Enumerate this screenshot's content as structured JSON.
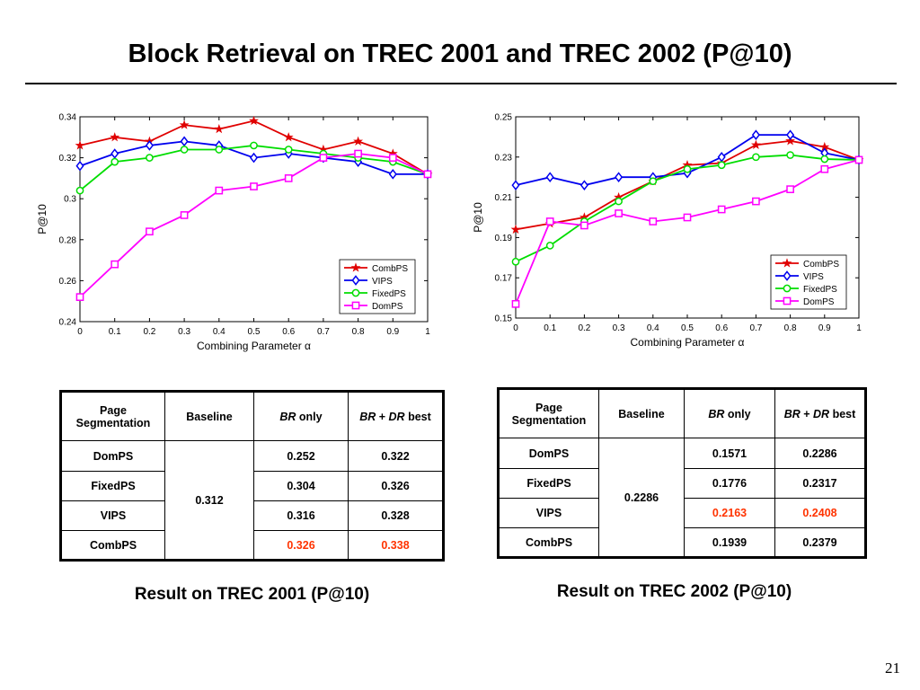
{
  "slide": {
    "title": "Block Retrieval on TREC 2001 and TREC 2002 (P@10)",
    "page_number": "21"
  },
  "chart_data": [
    {
      "type": "line",
      "title": "",
      "xlabel": "Combining Parameter α",
      "ylabel": "P@10",
      "x": [
        0,
        0.1,
        0.2,
        0.3,
        0.4,
        0.5,
        0.6,
        0.7,
        0.8,
        0.9,
        1
      ],
      "xlim": [
        0,
        1
      ],
      "ylim": [
        0.24,
        0.34
      ],
      "xticks": [
        "0",
        "0.1",
        "0.2",
        "0.3",
        "0.4",
        "0.5",
        "0.6",
        "0.7",
        "0.8",
        "0.9",
        "1"
      ],
      "yticks": [
        0.24,
        0.26,
        0.28,
        0.3,
        0.32,
        0.34
      ],
      "ytick_labels": [
        "0.24",
        "0.26",
        "0.28",
        "0.3",
        "0.32",
        "0.34"
      ],
      "grid": false,
      "legend_position": "bottom-right",
      "series": [
        {
          "name": "CombPS",
          "color": "#e00000",
          "marker": "star",
          "values": [
            0.326,
            0.33,
            0.328,
            0.336,
            0.334,
            0.338,
            0.33,
            0.324,
            0.328,
            0.322,
            0.312
          ]
        },
        {
          "name": "VIPS",
          "color": "#0000ee",
          "marker": "diamond",
          "values": [
            0.316,
            0.322,
            0.326,
            0.328,
            0.326,
            0.32,
            0.322,
            0.32,
            0.318,
            0.312,
            0.312
          ]
        },
        {
          "name": "FixedPS",
          "color": "#00dd00",
          "marker": "circle",
          "values": [
            0.304,
            0.318,
            0.32,
            0.324,
            0.324,
            0.326,
            0.324,
            0.322,
            0.32,
            0.318,
            0.312
          ]
        },
        {
          "name": "DomPS",
          "color": "#ff00ff",
          "marker": "square",
          "values": [
            0.252,
            0.268,
            0.284,
            0.292,
            0.304,
            0.306,
            0.31,
            0.32,
            0.322,
            0.32,
            0.312
          ]
        }
      ]
    },
    {
      "type": "line",
      "title": "",
      "xlabel": "Combining Parameter α",
      "ylabel": "P@10",
      "x": [
        0,
        0.1,
        0.2,
        0.3,
        0.4,
        0.5,
        0.6,
        0.7,
        0.8,
        0.9,
        1
      ],
      "xlim": [
        0,
        1
      ],
      "ylim": [
        0.15,
        0.25
      ],
      "xticks": [
        "0",
        "0.1",
        "0.2",
        "0.3",
        "0.4",
        "0.5",
        "0.6",
        "0.7",
        "0.8",
        "0.9",
        "1"
      ],
      "yticks": [
        0.15,
        0.17,
        0.19,
        0.21,
        0.23,
        0.25
      ],
      "ytick_labels": [
        "0.15",
        "0.17",
        "0.19",
        "0.21",
        "0.23",
        "0.25"
      ],
      "grid": false,
      "legend_position": "bottom-right",
      "series": [
        {
          "name": "CombPS",
          "color": "#e00000",
          "marker": "star",
          "values": [
            0.194,
            0.197,
            0.2,
            0.21,
            0.218,
            0.226,
            0.227,
            0.236,
            0.238,
            0.235,
            0.2286
          ]
        },
        {
          "name": "VIPS",
          "color": "#0000ee",
          "marker": "diamond",
          "values": [
            0.216,
            0.22,
            0.216,
            0.22,
            0.22,
            0.222,
            0.23,
            0.241,
            0.241,
            0.232,
            0.2286
          ]
        },
        {
          "name": "FixedPS",
          "color": "#00dd00",
          "marker": "circle",
          "values": [
            0.178,
            0.186,
            0.198,
            0.208,
            0.218,
            0.224,
            0.226,
            0.23,
            0.231,
            0.229,
            0.2286
          ]
        },
        {
          "name": "DomPS",
          "color": "#ff00ff",
          "marker": "square",
          "values": [
            0.157,
            0.198,
            0.196,
            0.202,
            0.198,
            0.2,
            0.204,
            0.208,
            0.214,
            0.224,
            0.2286
          ]
        }
      ]
    }
  ],
  "tables": [
    {
      "headers": {
        "seg": "Page Segmentation",
        "baseline": "Baseline",
        "br_italic": "BR",
        "br_rest": " only",
        "brdr_italic1": "BR",
        "brdr_plus": " + ",
        "brdr_italic2": "DR",
        "brdr_rest": " best"
      },
      "baseline_value": "0.312",
      "rows": [
        {
          "seg": "DomPS",
          "br": "0.252",
          "best": "0.322"
        },
        {
          "seg": "FixedPS",
          "br": "0.304",
          "best": "0.326"
        },
        {
          "seg": "VIPS",
          "br": "0.316",
          "best": "0.328"
        },
        {
          "seg": "CombPS",
          "br": "0.326",
          "best": "0.338"
        }
      ],
      "highlight_color": "#ff3300",
      "caption": "Result on TREC 2001 (P@10)"
    },
    {
      "headers": {
        "seg": "Page Segmentation",
        "baseline": "Baseline",
        "br_italic": "BR",
        "br_rest": " only",
        "brdr_italic1": "BR",
        "brdr_plus": " + ",
        "brdr_italic2": "DR",
        "brdr_rest": " best"
      },
      "baseline_value": "0.2286",
      "rows": [
        {
          "seg": "DomPS",
          "br": "0.1571",
          "best": "0.2286"
        },
        {
          "seg": "FixedPS",
          "br": "0.1776",
          "best": "0.2317"
        },
        {
          "seg": "VIPS",
          "br": "0.2163",
          "best": "0.2408"
        },
        {
          "seg": "CombPS",
          "br": "0.1939",
          "best": "0.2379"
        }
      ],
      "highlight_color": "#ff3300",
      "caption": "Result on TREC 2002 (P@10)"
    }
  ]
}
